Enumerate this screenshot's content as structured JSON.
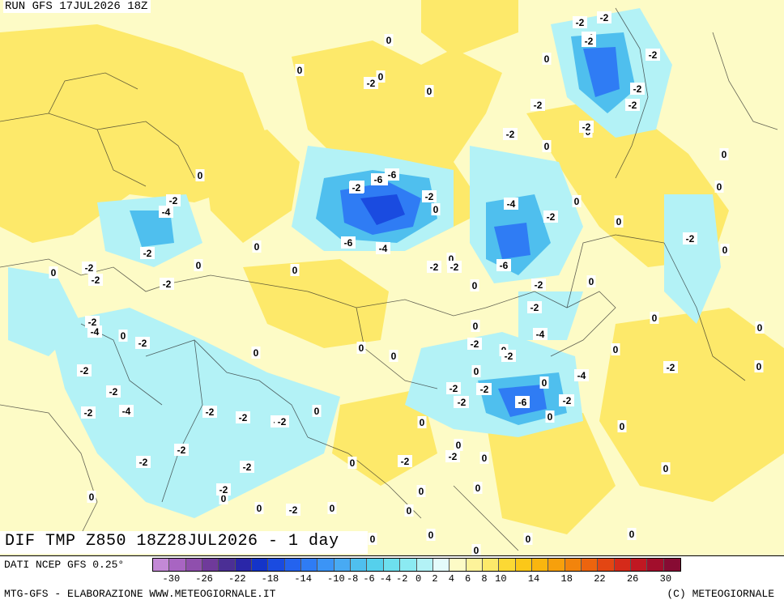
{
  "header": {
    "run": "RUN GFS 17JUL2026 18Z"
  },
  "title": "DIF TMP Z850 18Z28JUL2026 - 1 day",
  "footer": {
    "source": "DATI NCEP GFS 0.25°",
    "credit": "MTG-GFS - ELABORAZIONE WWW.METEOGIORNALE.IT",
    "copyright": "(C) METEOGIORNALE"
  },
  "legend": {
    "colors": [
      "#c389d6",
      "#a865c2",
      "#8f4fad",
      "#6f3a9a",
      "#4b2f95",
      "#2a26a8",
      "#1434c8",
      "#1a4be0",
      "#2463ee",
      "#2f7cf4",
      "#3b94f6",
      "#48aaf3",
      "#4fbfee",
      "#55d0ec",
      "#6ddfee",
      "#8beaf2",
      "#b3f2f6",
      "#e4fbfb",
      "#fdfbc6",
      "#fdf39a",
      "#fde96a",
      "#fcd934",
      "#fbc818",
      "#f9b60f",
      "#f7a00c",
      "#f2840c",
      "#ec640e",
      "#e34613",
      "#d52a1a",
      "#c01822",
      "#a20e2c",
      "#870b33"
    ],
    "tick_labels": [
      "-30",
      "-26",
      "-22",
      "-18",
      "-14",
      "-10",
      "-8",
      "-6",
      "-4",
      "-2",
      "0",
      "2",
      "4",
      "6",
      "8",
      "10",
      "14",
      "18",
      "22",
      "26",
      "30"
    ]
  },
  "map": {
    "field_colors": {
      "zero_band": "#fdfbc6",
      "warm": "#fde96a",
      "cool": "#b3f2f6",
      "cold": "#4fbfee",
      "colder": "#2f7cf4",
      "coldest": "#1a4be0"
    },
    "contour_labels": [
      "0",
      "0",
      "0",
      "0",
      "0",
      "0",
      "0",
      "0",
      "0",
      "0",
      "0",
      "0",
      "0",
      "0",
      "0",
      "0",
      "0",
      "0",
      "0",
      "0",
      "0",
      "0",
      "0",
      "0",
      "0",
      "0",
      "0",
      "0",
      "0",
      "0",
      "0",
      "0",
      "0",
      "0",
      "0",
      "0",
      "0",
      "0",
      "0",
      "0",
      "0",
      "0",
      "0",
      "0",
      "0",
      "0",
      "0",
      "0",
      "0",
      "0",
      "0",
      "0",
      "0",
      "0",
      "0",
      "-2",
      "-2",
      "-2",
      "-2",
      "-2",
      "-2",
      "-2",
      "-2",
      "-2",
      "-2",
      "-2",
      "-2",
      "-2",
      "-2",
      "-2",
      "-2",
      "-2",
      "-2",
      "-2",
      "-2",
      "-2",
      "-2",
      "-2",
      "-2",
      "-2",
      "-2",
      "-2",
      "-2",
      "-2",
      "-2",
      "-2",
      "-2",
      "-2",
      "-2",
      "-2",
      "-2",
      "-2",
      "-2",
      "-2",
      "-2",
      "-4",
      "-4",
      "-4",
      "-4",
      "-4",
      "-4",
      "-4",
      "-4",
      "-4",
      "-4",
      "-6",
      "-6",
      "-6",
      "-6",
      "-2",
      "-2",
      "-2",
      "-2",
      "-2",
      "-2",
      "-2",
      "-2",
      "-2",
      "-4",
      "-6",
      "-4",
      "-2"
    ]
  }
}
